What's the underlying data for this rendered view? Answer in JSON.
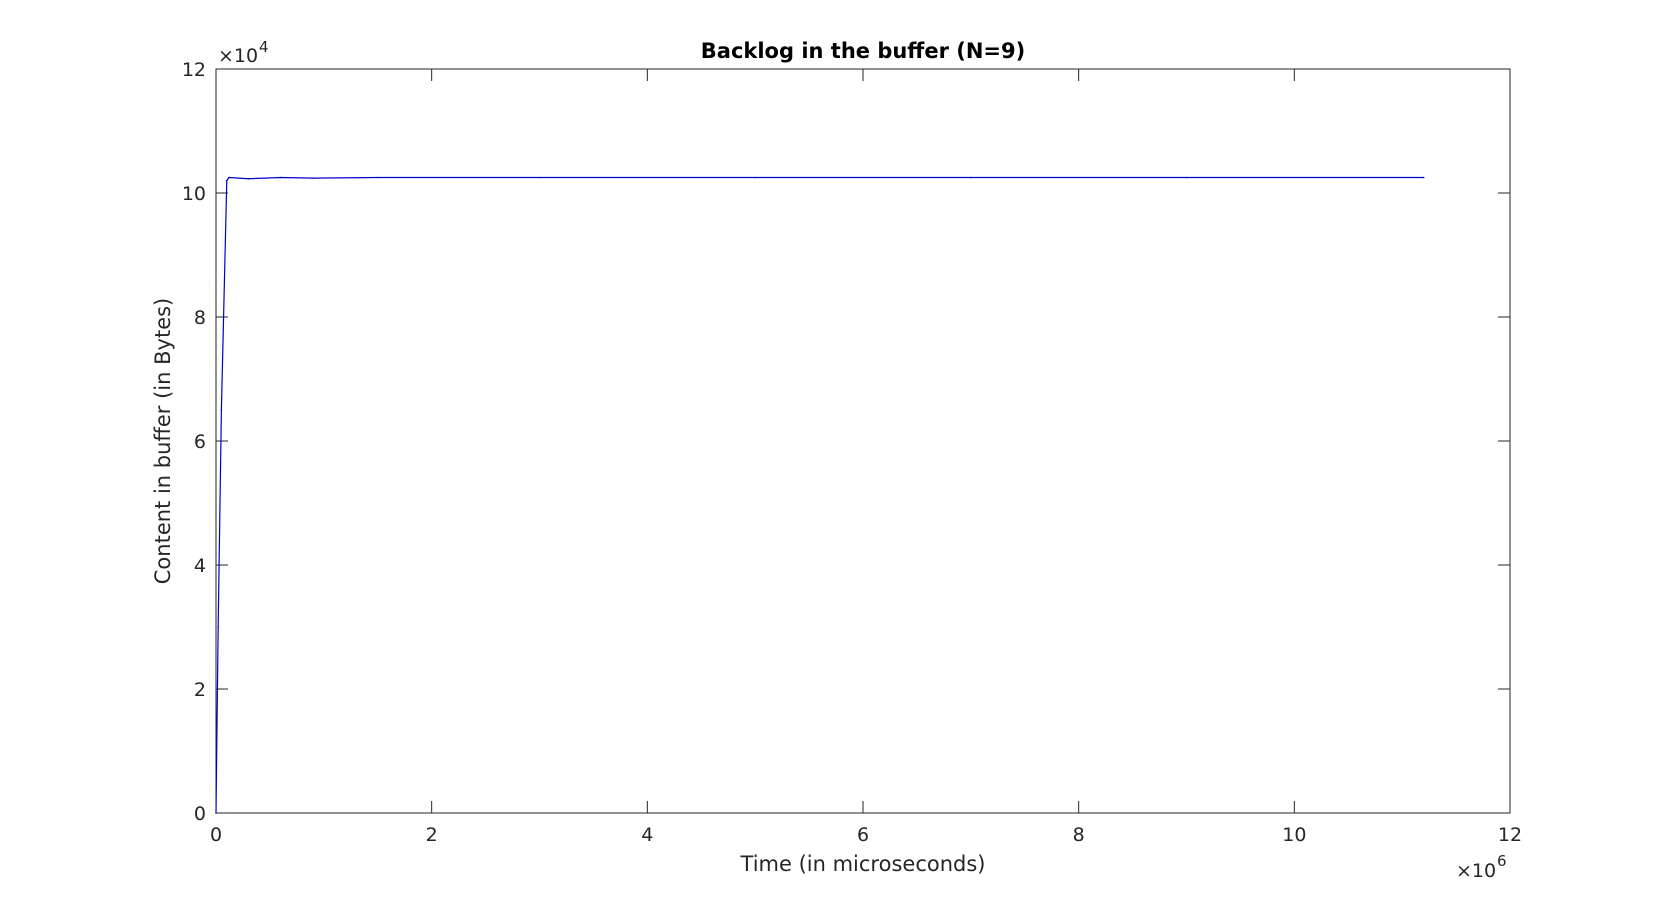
{
  "chart_data": {
    "type": "line",
    "title": "Backlog in the buffer (N=9)",
    "xlabel": "Time (in microseconds)",
    "ylabel": "Content in buffer (in Bytes)",
    "x_multiplier": {
      "base": "×10",
      "exponent": "6"
    },
    "y_multiplier": {
      "base": "×10",
      "exponent": "4"
    },
    "xlim": [
      0,
      12
    ],
    "ylim": [
      0,
      12
    ],
    "x_ticks": [
      0,
      2,
      4,
      6,
      8,
      10,
      12
    ],
    "y_ticks": [
      0,
      2,
      4,
      6,
      8,
      10,
      12
    ],
    "grid": false,
    "line_color": "#0000cc",
    "series": [
      {
        "x": [
          0,
          0.02,
          0.05,
          0.1,
          0.12,
          0.3,
          0.6,
          0.9,
          1.5,
          3,
          5,
          7,
          9,
          11.2
        ],
        "y": [
          0,
          3.0,
          6.5,
          10.2,
          10.25,
          10.23,
          10.25,
          10.24,
          10.25,
          10.25,
          10.25,
          10.25,
          10.25,
          10.25
        ]
      }
    ]
  }
}
